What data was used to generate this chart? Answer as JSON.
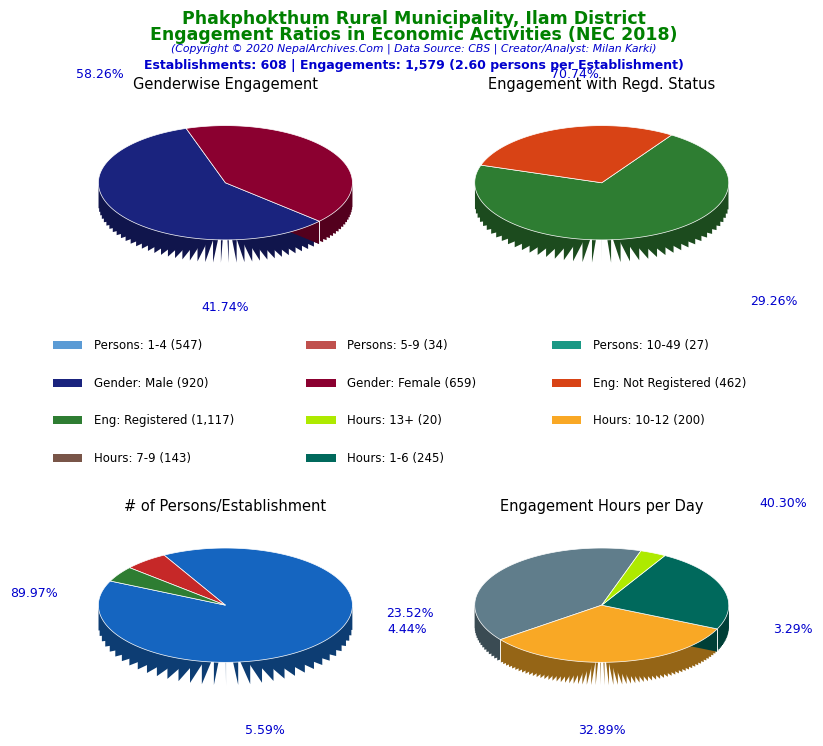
{
  "title_line1": "Phakphokthum Rural Municipality, Ilam District",
  "title_line2": "Engagement Ratios in Economic Activities (NEC 2018)",
  "subtitle": "(Copyright © 2020 NepalArchives.Com | Data Source: CBS | Creator/Analyst: Milan Karki)",
  "stats_line": "Establishments: 608 | Engagements: 1,579 (2.60 persons per Establishment)",
  "title_color": "#008000",
  "subtitle_color": "#0000CD",
  "stats_color": "#0000CD",
  "pie1_title": "Genderwise Engagement",
  "pie1_values": [
    58.26,
    41.74
  ],
  "pie1_labels": [
    "58.26%",
    "41.74%"
  ],
  "pie1_colors": [
    "#1a237e",
    "#8b0030"
  ],
  "pie1_startangle": 108,
  "pie2_title": "Engagement with Regd. Status",
  "pie2_values": [
    70.74,
    29.26
  ],
  "pie2_labels": [
    "70.74%",
    "29.26%"
  ],
  "pie2_colors": [
    "#2e7d32",
    "#d84315"
  ],
  "pie2_startangle": 162,
  "pie3_title": "# of Persons/Establishment",
  "pie3_values": [
    89.97,
    5.59,
    4.44
  ],
  "pie3_labels": [
    "89.97%",
    "5.59%",
    "4.44%"
  ],
  "pie3_colors": [
    "#1565c0",
    "#c62828",
    "#2e7d32"
  ],
  "pie3_startangle": 155,
  "pie4_title": "Engagement Hours per Day",
  "pie4_values": [
    40.3,
    32.89,
    23.52,
    3.29
  ],
  "pie4_labels": [
    "40.30%",
    "32.89%",
    "23.52%",
    "3.29%"
  ],
  "pie4_colors": [
    "#607d8b",
    "#f9a825",
    "#00695c",
    "#aeea00"
  ],
  "pie4_startangle": 72,
  "legend_items": [
    {
      "label": "Persons: 1-4 (547)",
      "color": "#5b9bd5"
    },
    {
      "label": "Persons: 5-9 (34)",
      "color": "#c0504d"
    },
    {
      "label": "Persons: 10-49 (27)",
      "color": "#1a9985"
    },
    {
      "label": "Gender: Male (920)",
      "color": "#1a237e"
    },
    {
      "label": "Gender: Female (659)",
      "color": "#8b0030"
    },
    {
      "label": "Eng: Not Registered (462)",
      "color": "#d84315"
    },
    {
      "label": "Eng: Registered (1,117)",
      "color": "#2e7d32"
    },
    {
      "label": "Hours: 13+ (20)",
      "color": "#aeea00"
    },
    {
      "label": "Hours: 10-12 (200)",
      "color": "#f9a825"
    },
    {
      "label": "Hours: 7-9 (143)",
      "color": "#795548"
    },
    {
      "label": "Hours: 1-6 (245)",
      "color": "#00695c"
    }
  ],
  "background_color": "#ffffff"
}
